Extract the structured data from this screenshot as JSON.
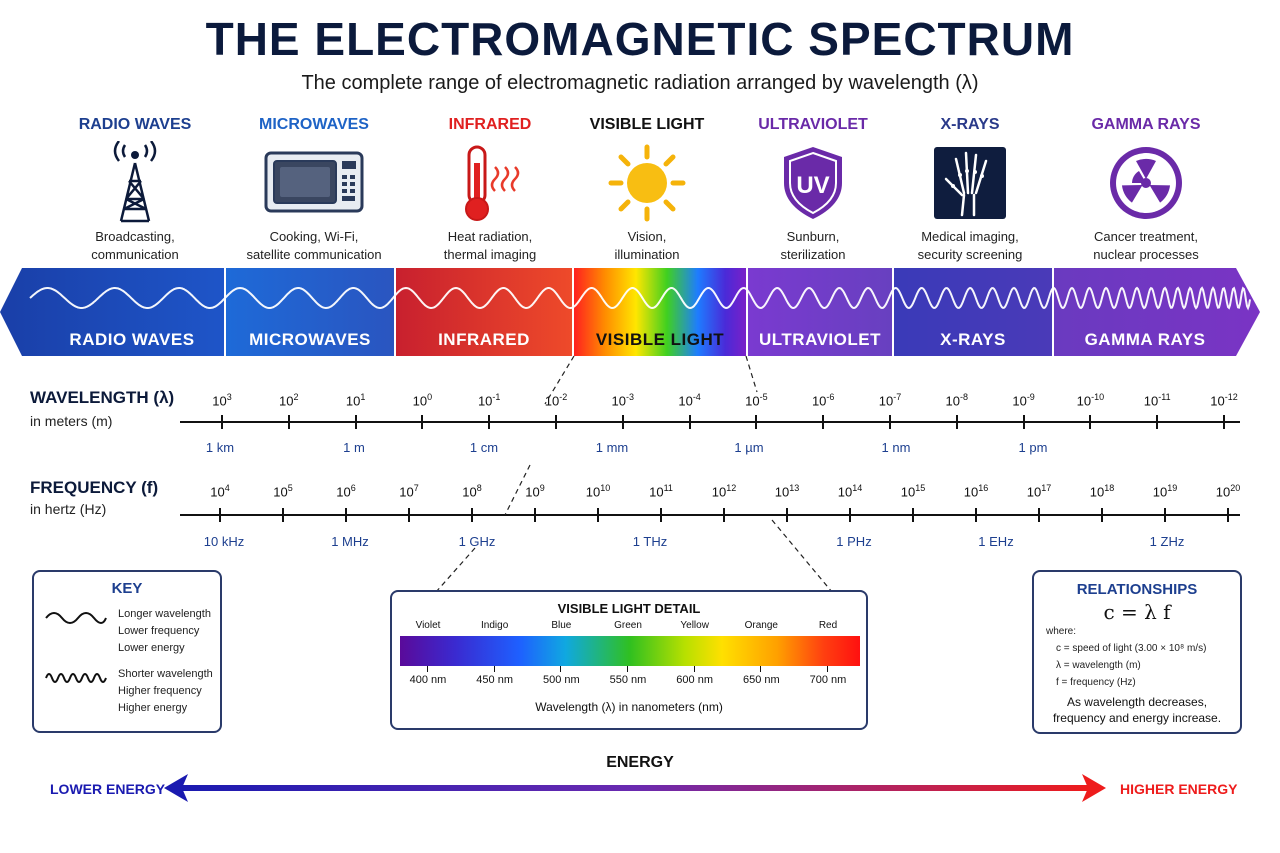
{
  "title": "THE ELECTROMAGNETIC SPECTRUM",
  "subtitle": "The complete range of electromagnetic radiation arranged by wavelength (λ)",
  "categories": [
    {
      "name": "RADIO WAVES",
      "color": "#1d3f8f",
      "icon": "radio-tower-icon",
      "use1": "Broadcasting,",
      "use2": "communication"
    },
    {
      "name": "MICROWAVES",
      "color": "#1e63c6",
      "icon": "microwave-oven-icon",
      "use1": "Cooking, Wi-Fi,",
      "use2": "satellite communication"
    },
    {
      "name": "INFRARED",
      "color": "#e02020",
      "icon": "thermometer-icon",
      "use1": "Heat radiation,",
      "use2": "thermal imaging"
    },
    {
      "name": "VISIBLE LIGHT",
      "color": "#111111",
      "icon": "sun-icon",
      "use1": "Vision,",
      "use2": "illumination"
    },
    {
      "name": "ULTRAVIOLET",
      "color": "#6a2aa8",
      "icon": "uv-shield-icon",
      "icon_text": "UV",
      "use1": "Sunburn,",
      "use2": "sterilization"
    },
    {
      "name": "X-RAYS",
      "color": "#2a3a8a",
      "icon": "xray-hand-icon",
      "use1": "Medical imaging,",
      "use2": "security screening"
    },
    {
      "name": "GAMMA RAYS",
      "color": "#6a2aa8",
      "icon": "radiation-icon",
      "use1": "Cancer treatment,",
      "use2": "nuclear processes"
    }
  ],
  "bands": [
    "RADIO WAVES",
    "MICROWAVES",
    "INFRARED",
    "VISIBLE LIGHT",
    "ULTRAVIOLET",
    "X-RAYS",
    "GAMMA RAYS"
  ],
  "wavelength_axis": {
    "title": "WAVELENGTH (λ)",
    "subtitle": "in meters (m)",
    "exponents": [
      "3",
      "2",
      "1",
      "0",
      "-1",
      "-2",
      "-3",
      "-4",
      "-5",
      "-6",
      "-7",
      "-8",
      "-9",
      "-10",
      "-11",
      "-12"
    ],
    "units": [
      "1 km",
      "1 m",
      "1 cm",
      "1 mm",
      "1 µm",
      "1 nm",
      "1 pm"
    ]
  },
  "frequency_axis": {
    "title": "FREQUENCY (f)",
    "subtitle": "in hertz (Hz)",
    "exponents": [
      "4",
      "5",
      "6",
      "7",
      "8",
      "9",
      "10",
      "11",
      "12",
      "13",
      "14",
      "15",
      "16",
      "17",
      "18",
      "19",
      "20"
    ],
    "units": [
      "10 kHz",
      "1 MHz",
      "1 GHz",
      "1 THz",
      "1 PHz",
      "1 EHz",
      "1 ZHz"
    ]
  },
  "key": {
    "title": "KEY",
    "long": [
      "Longer wavelength",
      "Lower frequency",
      "Lower energy"
    ],
    "short": [
      "Shorter wavelength",
      "Higher frequency",
      "Higher energy"
    ]
  },
  "visible_detail": {
    "title": "VISIBLE LIGHT DETAIL",
    "colors": [
      "Violet",
      "Indigo",
      "Blue",
      "Green",
      "Yellow",
      "Orange",
      "Red"
    ],
    "nm": [
      "400 nm",
      "450 nm",
      "500 nm",
      "550 nm",
      "600 nm",
      "650 nm",
      "700 nm"
    ],
    "axis_label": "Wavelength (λ) in nanometers (nm)"
  },
  "relationships": {
    "title": "RELATIONSHIPS",
    "formula": "c = λ f",
    "where": "where:",
    "defs": [
      "c = speed of light (3.00 × 10⁸ m/s)",
      "λ = wavelength (m)",
      "f = frequency (Hz)"
    ],
    "note1": "As wavelength decreases,",
    "note2": "frequency and energy increase."
  },
  "energy": {
    "title": "ENERGY",
    "lower": "LOWER ENERGY",
    "higher": "HIGHER ENERGY",
    "lower_color": "#1a1ab0",
    "higher_color": "#ee1c1c"
  }
}
